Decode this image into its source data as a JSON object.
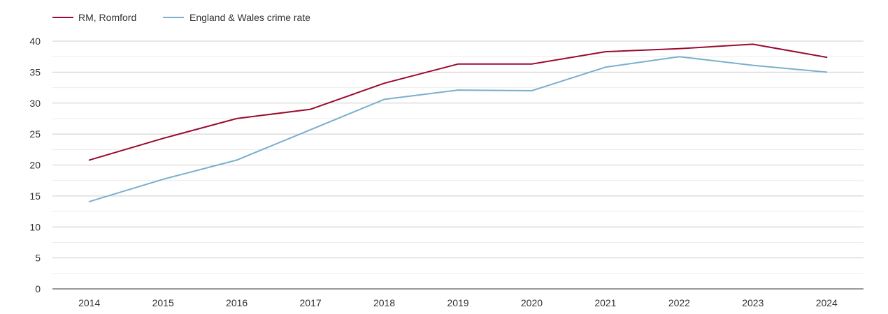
{
  "chart_data": {
    "type": "line",
    "title": "",
    "xlabel": "",
    "ylabel": "",
    "categories": [
      "2014",
      "2015",
      "2016",
      "2017",
      "2018",
      "2019",
      "2020",
      "2021",
      "2022",
      "2023",
      "2024"
    ],
    "ylim": [
      0,
      40
    ],
    "yticks": [
      0,
      5,
      10,
      15,
      20,
      25,
      30,
      35,
      40
    ],
    "minor_grid": true,
    "legend_position": "top-left",
    "series": [
      {
        "name": "RM, Romford",
        "color": "#9b0a2f",
        "values": [
          20.8,
          24.3,
          27.5,
          29.0,
          33.2,
          36.3,
          36.3,
          38.3,
          38.8,
          39.5,
          37.4
        ]
      },
      {
        "name": "England & Wales crime rate",
        "color": "#7aafcc",
        "values": [
          14.1,
          17.7,
          20.8,
          25.7,
          30.6,
          32.1,
          32.0,
          35.8,
          37.5,
          36.1,
          35.0
        ]
      }
    ]
  }
}
